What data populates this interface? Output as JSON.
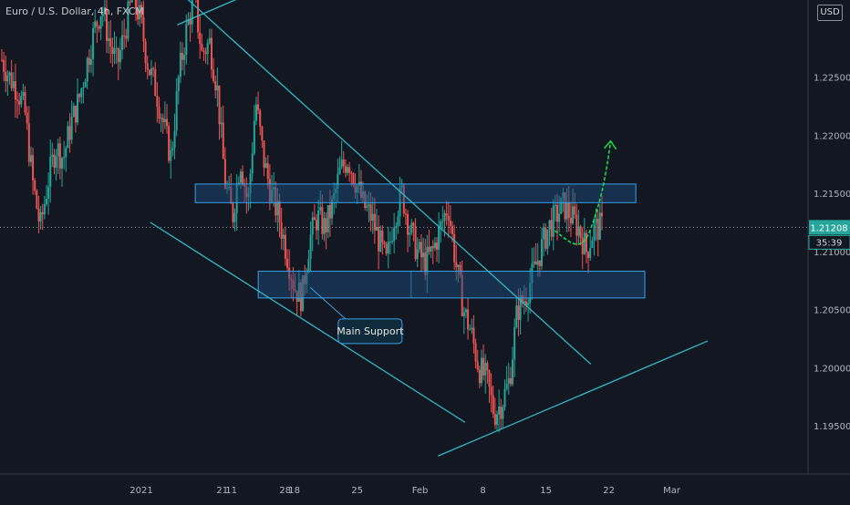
{
  "header": {
    "symbol_title": "Euro / U.S. Dollar, 4h, FXCM",
    "currency": "USD"
  },
  "price_label": "1.21208",
  "countdown_label": "35:39",
  "annotation": {
    "text": "Main Support"
  },
  "colors": {
    "background": "#131722",
    "up": "#26a69a",
    "down": "#ef5350",
    "trendline": "#2fb8c7",
    "zone_fill": "#1c4f85",
    "zone_border": "#3aa0e8",
    "projection": "#19e34a",
    "price_tag": "#26a69a"
  },
  "chart_data": {
    "type": "candlestick",
    "title": "Euro / U.S. Dollar, 4h, FXCM",
    "ylim": [
      1.1925,
      1.2325
    ],
    "y_ticks": [
      1.195,
      1.2,
      1.205,
      1.21,
      1.215,
      1.22,
      1.225
    ],
    "y_tick_labels": [
      "1.19500",
      "1.20000",
      "1.20500",
      "1.21000",
      "1.21500",
      "1.22000",
      "1.22500"
    ],
    "x_tick_labels": [
      "21",
      "28",
      "2021",
      "11",
      "18",
      "25",
      "Feb",
      "8",
      "15",
      "22",
      "Mar"
    ],
    "last_price": 1.21208,
    "price_path": [
      1.2265,
      1.225,
      1.224,
      1.222,
      1.216,
      1.212,
      1.216,
      1.219,
      1.218,
      1.221,
      1.223,
      1.226,
      1.229,
      1.231,
      1.228,
      1.226,
      1.229,
      1.232,
      1.23,
      1.226,
      1.224,
      1.221,
      1.218,
      1.225,
      1.229,
      1.232,
      1.227,
      1.228,
      1.224,
      1.216,
      1.213,
      1.218,
      1.214,
      1.223,
      1.218,
      1.215,
      1.213,
      1.21,
      1.207,
      1.206,
      1.211,
      1.213,
      1.212,
      1.214,
      1.217,
      1.218,
      1.216,
      1.214,
      1.213,
      1.211,
      1.209,
      1.213,
      1.215,
      1.212,
      1.21,
      1.209,
      1.21,
      1.212,
      1.214,
      1.209,
      1.205,
      1.203,
      1.2,
      1.199,
      1.196,
      1.197,
      1.199,
      1.205,
      1.206,
      1.208,
      1.21,
      1.212,
      1.213,
      1.214,
      1.213,
      1.212,
      1.21,
      1.212,
      1.2121
    ],
    "zones": [
      {
        "from": 1.2142,
        "to": 1.2158,
        "x_start": "Jan 7",
        "x_end": "Feb 25"
      },
      {
        "from": 1.206,
        "to": 1.2083,
        "x_start": "Jan 14",
        "x_end": "Feb 26"
      }
    ],
    "lines": [
      {
        "name": "upper downtrend",
        "from": [
          "Jan 5",
          1.2325
        ],
        "to": [
          "Feb 20",
          1.2003
        ]
      },
      {
        "name": "lower channel",
        "from": [
          "Jan 2",
          1.2125
        ],
        "to": [
          "Feb 6",
          1.1953
        ]
      },
      {
        "name": "rising support",
        "from": [
          "Feb 3",
          1.1924
        ],
        "to": [
          "Mar 5",
          1.2023
        ]
      },
      {
        "name": "prior trend",
        "from": [
          "Dec 16",
          1.2295
        ],
        "to": [
          "Dec 25",
          1.2325
        ]
      }
    ],
    "projection": {
      "from": 1.2118,
      "dip": 1.2105,
      "to": 1.2195
    },
    "grid": false,
    "legend": "none"
  }
}
